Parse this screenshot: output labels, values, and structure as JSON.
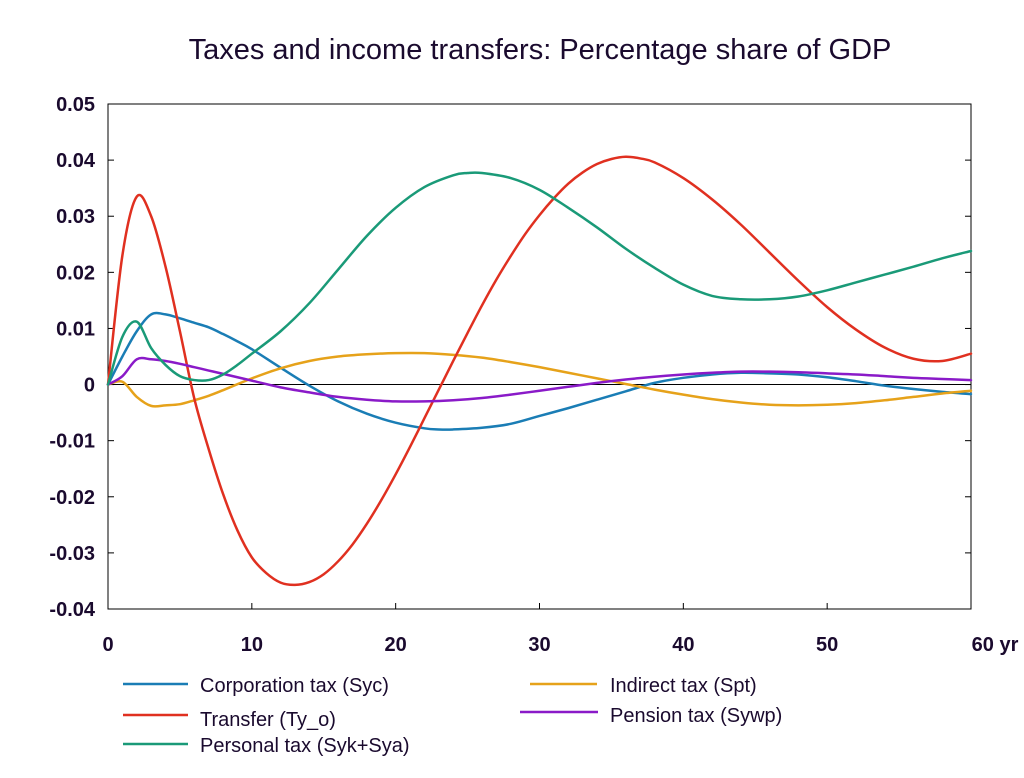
{
  "chart_data": {
    "type": "line",
    "title": "Taxes and income transfers: Percentage share of GDP",
    "xlabel": "",
    "ylabel": "",
    "x_unit_label": "yr",
    "xlim": [
      0,
      60
    ],
    "ylim": [
      -0.04,
      0.05
    ],
    "x_ticks": [
      0,
      10,
      20,
      30,
      40,
      50,
      60
    ],
    "y_ticks": [
      -0.04,
      -0.03,
      -0.02,
      -0.01,
      0,
      0.01,
      0.02,
      0.03,
      0.04,
      0.05
    ],
    "y_tick_labels": [
      "-0.04",
      "-0.03",
      "-0.02",
      "-0.01",
      "0",
      "0.01",
      "0.02",
      "0.03",
      "0.04",
      "0.05"
    ],
    "grid": false,
    "legend_position": "bottom",
    "series": [
      {
        "name": "Corporation tax (Syc)",
        "color": "#1a7db5",
        "x": [
          0,
          1,
          2,
          3,
          4,
          5,
          6,
          7,
          8,
          9,
          10,
          12,
          14,
          16,
          18,
          20,
          22,
          23,
          24,
          26,
          28,
          30,
          32,
          34,
          36,
          38,
          40,
          42,
          44,
          46,
          48,
          50,
          52,
          54,
          56,
          58,
          60
        ],
        "y": [
          0,
          0.005,
          0.0095,
          0.0125,
          0.0125,
          0.0118,
          0.011,
          0.0102,
          0.009,
          0.0077,
          0.0063,
          0.003,
          -0.0002,
          -0.003,
          -0.0052,
          -0.0068,
          -0.0078,
          -0.008,
          -0.008,
          -0.0077,
          -0.007,
          -0.0056,
          -0.0042,
          -0.0027,
          -0.0012,
          0.0003,
          0.0012,
          0.0018,
          0.0021,
          0.002,
          0.0018,
          0.0013,
          0.0006,
          -0.0002,
          -0.0008,
          -0.0013,
          -0.0017
        ]
      },
      {
        "name": "Indirect tax (Spt)",
        "color": "#e6a21a",
        "x": [
          0,
          1,
          2,
          3,
          4,
          5,
          6,
          7,
          8,
          10,
          12,
          14,
          16,
          18,
          20,
          22,
          24,
          26,
          28,
          30,
          32,
          34,
          36,
          38,
          40,
          42,
          44,
          46,
          48,
          50,
          52,
          54,
          56,
          58,
          60
        ],
        "y": [
          0,
          0.0005,
          -0.0022,
          -0.0038,
          -0.0037,
          -0.0035,
          -0.0028,
          -0.002,
          -0.001,
          0.0011,
          0.0029,
          0.0042,
          0.005,
          0.0054,
          0.0056,
          0.0056,
          0.0053,
          0.0048,
          0.004,
          0.0031,
          0.0021,
          0.0011,
          0.0001,
          -0.0009,
          -0.0018,
          -0.0026,
          -0.0032,
          -0.0036,
          -0.0037,
          -0.0036,
          -0.0033,
          -0.0028,
          -0.0022,
          -0.0016,
          -0.0011
        ]
      },
      {
        "name": "Transfer (Ty_o)",
        "color": "#e03020",
        "x": [
          0,
          1,
          2,
          3,
          4,
          5,
          6,
          7,
          8,
          9,
          10,
          11,
          12,
          13,
          14,
          15,
          16,
          17,
          18,
          19,
          20,
          21,
          22,
          23,
          24,
          25,
          26,
          27,
          28,
          29,
          30,
          31,
          32,
          33,
          34,
          35,
          36,
          37,
          38,
          40,
          42,
          44,
          46,
          48,
          50,
          52,
          54,
          56,
          58,
          60
        ],
        "y": [
          0,
          0.023,
          0.0335,
          0.03,
          0.021,
          0.0095,
          -0.0025,
          -0.0115,
          -0.0195,
          -0.026,
          -0.0308,
          -0.0336,
          -0.0353,
          -0.0357,
          -0.0352,
          -0.0338,
          -0.0315,
          -0.0285,
          -0.0248,
          -0.0206,
          -0.016,
          -0.0111,
          -0.006,
          -0.0009,
          0.0042,
          0.0092,
          0.0141,
          0.0187,
          0.0229,
          0.0268,
          0.0302,
          0.0332,
          0.0358,
          0.0378,
          0.0393,
          0.0402,
          0.0406,
          0.0403,
          0.0396,
          0.0368,
          0.033,
          0.0285,
          0.0235,
          0.0185,
          0.0138,
          0.0098,
          0.0066,
          0.0046,
          0.0042,
          0.0055
        ]
      },
      {
        "name": "Pension tax (Sywp)",
        "color": "#8a1ac8",
        "x": [
          0,
          1,
          2,
          3,
          4,
          5,
          6,
          7,
          8,
          10,
          12,
          14,
          16,
          18,
          20,
          22,
          24,
          26,
          28,
          30,
          32,
          34,
          36,
          38,
          40,
          42,
          44,
          46,
          48,
          50,
          52,
          54,
          56,
          58,
          60
        ],
        "y": [
          0,
          0.0015,
          0.0045,
          0.0045,
          0.0042,
          0.0037,
          0.0031,
          0.0025,
          0.0019,
          0.0007,
          -0.0005,
          -0.0014,
          -0.0022,
          -0.0027,
          -0.003,
          -0.003,
          -0.0028,
          -0.0024,
          -0.0018,
          -0.0011,
          -0.0004,
          0.0003,
          0.0009,
          0.0014,
          0.0018,
          0.0021,
          0.0023,
          0.0023,
          0.0022,
          0.002,
          0.0018,
          0.0015,
          0.0012,
          0.001,
          0.0008
        ]
      },
      {
        "name": "Personal tax (Syk+Sya)",
        "color": "#1a9a78",
        "x": [
          0,
          1,
          2,
          3,
          4,
          5,
          6,
          7,
          8,
          9,
          10,
          12,
          14,
          16,
          18,
          20,
          22,
          24,
          25,
          26,
          28,
          30,
          32,
          34,
          36,
          38,
          40,
          42,
          44,
          46,
          48,
          50,
          52,
          54,
          56,
          58,
          60
        ],
        "y": [
          0,
          0.0085,
          0.0112,
          0.0065,
          0.0035,
          0.0015,
          0.0008,
          0.0008,
          0.0018,
          0.0035,
          0.0055,
          0.0095,
          0.0145,
          0.0205,
          0.0265,
          0.0315,
          0.0352,
          0.0373,
          0.0377,
          0.0377,
          0.0368,
          0.0347,
          0.0315,
          0.028,
          0.0242,
          0.0208,
          0.0178,
          0.0158,
          0.0152,
          0.0152,
          0.0157,
          0.0168,
          0.0182,
          0.0196,
          0.021,
          0.0225,
          0.0238
        ]
      }
    ]
  }
}
